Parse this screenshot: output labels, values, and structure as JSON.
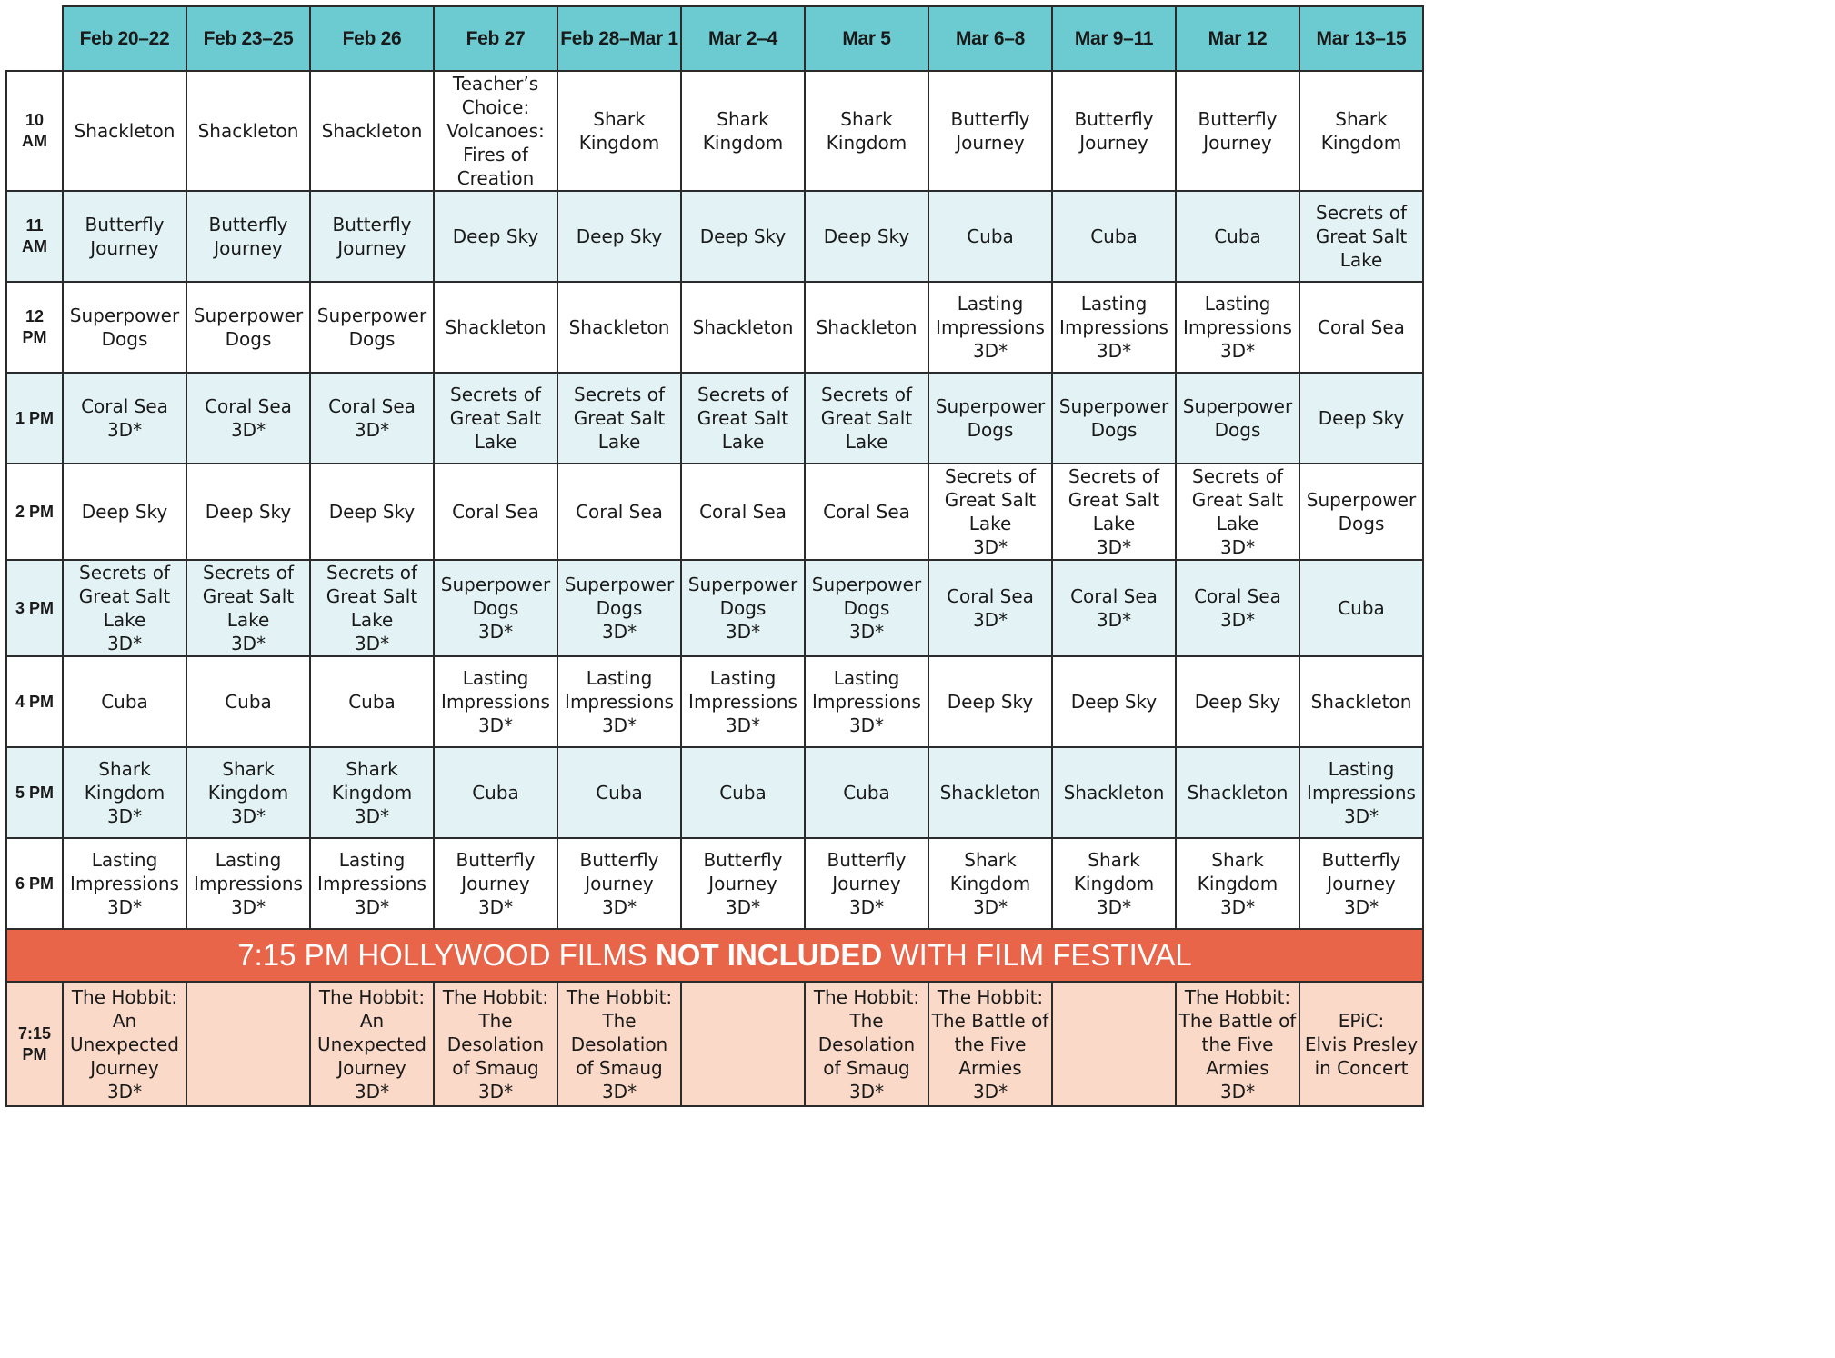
{
  "columns": [
    "Feb 20–22",
    "Feb 23–25",
    "Feb 26",
    "Feb 27",
    "Feb 28–Mar 1",
    "Mar 2–4",
    "Mar 5",
    "Mar 6–8",
    "Mar 9–11",
    "Mar 12",
    "Mar 13–15"
  ],
  "rows": [
    {
      "time": "10\nAM",
      "cells": [
        "Shackleton",
        "Shackleton",
        "Shackleton",
        "Teacher’s\nChoice:\nVolcanoes:\nFires of\nCreation",
        "Shark\nKingdom",
        "Shark\nKingdom",
        "Shark\nKingdom",
        "Butterfly\nJourney",
        "Butterfly\nJourney",
        "Butterfly\nJourney",
        "Shark\nKingdom"
      ]
    },
    {
      "time": "11\nAM",
      "cells": [
        "Butterfly\nJourney",
        "Butterfly\nJourney",
        "Butterfly\nJourney",
        "Deep Sky",
        "Deep Sky",
        "Deep Sky",
        "Deep Sky",
        "Cuba",
        "Cuba",
        "Cuba",
        "Secrets of\nGreat Salt Lake"
      ]
    },
    {
      "time": "12\nPM",
      "cells": [
        "Superpower\nDogs",
        "Superpower\nDogs",
        "Superpower\nDogs",
        "Shackleton",
        "Shackleton",
        "Shackleton",
        "Shackleton",
        "Lasting\nImpressions\n3D*",
        "Lasting\nImpressions\n3D*",
        "Lasting\nImpressions\n3D*",
        "Coral Sea"
      ]
    },
    {
      "time": "1 PM",
      "cells": [
        "Coral Sea\n3D*",
        "Coral Sea\n3D*",
        "Coral Sea\n3D*",
        "Secrets of\nGreat Salt Lake",
        "Secrets of\nGreat Salt\nLake",
        "Secrets of\nGreat Salt Lake",
        "Secrets of\nGreat Salt Lake",
        "Superpower\nDogs",
        "Superpower\nDogs",
        "Superpower\nDogs",
        "Deep Sky"
      ]
    },
    {
      "time": "2 PM",
      "cells": [
        "Deep Sky",
        "Deep Sky",
        "Deep Sky",
        "Coral Sea",
        "Coral Sea",
        "Coral Sea",
        "Coral Sea",
        "Secrets of\nGreat Salt Lake\n3D*",
        "Secrets of\nGreat Salt Lake\n3D*",
        "Secrets of\nGreat Salt Lake\n3D*",
        "Superpower\nDogs"
      ]
    },
    {
      "time": "3 PM",
      "cells": [
        "Secrets of\nGreat Salt Lake\n3D*",
        "Secrets of\nGreat Salt Lake\n3D*",
        "Secrets of\nGreat Salt Lake\n3D*",
        "Superpower\nDogs\n3D*",
        "Superpower\nDogs\n3D*",
        "Superpower\nDogs\n3D*",
        "Superpower\nDogs\n3D*",
        "Coral Sea\n3D*",
        "Coral Sea\n3D*",
        "Coral Sea\n3D*",
        "Cuba"
      ]
    },
    {
      "time": "4 PM",
      "cells": [
        "Cuba",
        "Cuba",
        "Cuba",
        "Lasting\nImpressions\n3D*",
        "Lasting\nImpressions\n3D*",
        "Lasting\nImpressions\n3D*",
        "Lasting\nImpressions\n3D*",
        "Deep Sky",
        "Deep Sky",
        "Deep Sky",
        "Shackleton"
      ]
    },
    {
      "time": "5 PM",
      "cells": [
        "Shark\nKingdom\n3D*",
        "Shark\nKingdom\n3D*",
        "Shark\nKingdom\n3D*",
        "Cuba",
        "Cuba",
        "Cuba",
        "Cuba",
        "Shackleton",
        "Shackleton",
        "Shackleton",
        "Lasting\nImpressions\n3D*"
      ]
    },
    {
      "time": "6 PM",
      "cells": [
        "Lasting\nImpressions\n3D*",
        "Lasting\nImpressions\n3D*",
        "Lasting\nImpressions\n3D*",
        "Butterfly\nJourney\n3D*",
        "Butterfly\nJourney\n3D*",
        "Butterfly\nJourney\n3D*",
        "Butterfly\nJourney\n3D*",
        "Shark\nKingdom\n3D*",
        "Shark\nKingdom\n3D*",
        "Shark\nKingdom\n3D*",
        "Butterfly\nJourney\n3D*"
      ]
    }
  ],
  "banner": {
    "prefix": "7:15 PM HOLLYWOOD FILMS ",
    "emphasis": "NOT INCLUDED",
    "suffix": " WITH FILM FESTIVAL"
  },
  "evening": {
    "time": "7:15\nPM",
    "cells": [
      "The Hobbit:\nAn Unexpected\nJourney\n3D*",
      "",
      "The Hobbit:\nAn Unexpected\nJourney\n3D*",
      "The Hobbit:\nThe Desolation\nof Smaug\n3D*",
      "The Hobbit:\nThe Desolation\nof Smaug\n3D*",
      "",
      "The Hobbit:\nThe Desolation\nof Smaug\n3D*",
      "The Hobbit:\nThe Battle of\nthe Five Armies\n3D*",
      "",
      "The Hobbit:\nThe Battle of\nthe Five Armies\n3D*",
      "EPiC:\nElvis Presley\nin Concert"
    ]
  },
  "colors": {
    "header": "#6ccbd0",
    "row_tint": "#e3f3f5",
    "banner": "#e8654a",
    "evening": "#fbd9c8"
  }
}
